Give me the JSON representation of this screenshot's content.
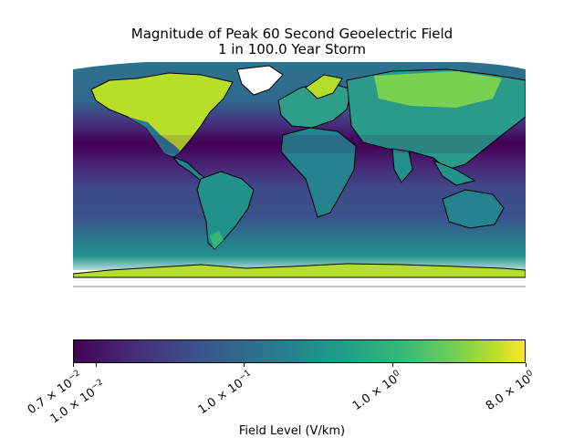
{
  "title_line1": "Magnitude of Peak 60 Second Geoelectric Field",
  "title_line2": "1 in 100.0 Year Storm",
  "colorbar": {
    "label": "Field Level (V/km)",
    "colormap": "viridis",
    "scale": "log",
    "range": [
      0.007,
      8.0
    ],
    "ticks": [
      {
        "text": "0.7 × 10",
        "exp": "−2",
        "value": 0.007
      },
      {
        "text": "1.0 × 10",
        "exp": "−2",
        "value": 0.01
      },
      {
        "text": "1.0 × 10",
        "exp": "−1",
        "value": 0.1
      },
      {
        "text": "1.0 × 10",
        "exp": "0",
        "value": 1.0
      },
      {
        "text": "8.0 × 10",
        "exp": "0",
        "value": 8.0
      }
    ]
  },
  "colors": {
    "ocean_equatorial": "#440154",
    "ocean_mid": "#31688e",
    "land_low": "#2a788e",
    "land_mid": "#35b779",
    "land_high": "#c8e020",
    "land_peak": "#fde725",
    "coastline": "#000000"
  }
}
